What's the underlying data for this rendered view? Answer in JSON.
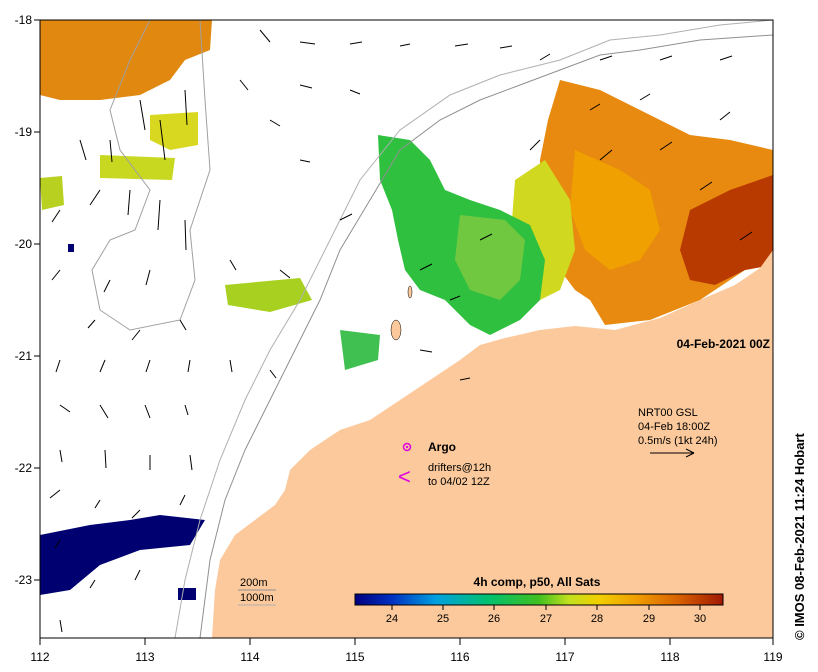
{
  "map": {
    "date_label": "04-Feb-2021 00Z",
    "credit": "© IMOS 08-Feb-2021 11:24 Hobart",
    "lon_ticks": [
      "112",
      "113",
      "114",
      "115",
      "116",
      "117",
      "118",
      "119"
    ],
    "lat_ticks": [
      "-18",
      "-19",
      "-20",
      "-21",
      "-22",
      "-23"
    ]
  },
  "current_info": {
    "line1": "NRT00 GSL",
    "line2": "04-Feb 18:00Z",
    "line3": "0.5m/s (1kt 24h)"
  },
  "legend": {
    "argo_label": "Argo",
    "drifters_line1": "drifters@12h",
    "drifters_line2": "to 04/02 12Z",
    "drifter_symbol": "<",
    "argo_color": "#e000e0"
  },
  "bathymetry": {
    "label_200": "200m",
    "label_1000": "1000m"
  },
  "colorbar": {
    "title": "4h comp, p50, All Sats",
    "ticks": [
      "24",
      "25",
      "26",
      "27",
      "28",
      "29",
      "30"
    ],
    "colors": [
      "#000080",
      "#0040c0",
      "#00a0e0",
      "#00c880",
      "#20c020",
      "#a0d820",
      "#e8e000",
      "#f0a000",
      "#e07000",
      "#c04000",
      "#a02000"
    ]
  },
  "land_color": "#fbc99b"
}
